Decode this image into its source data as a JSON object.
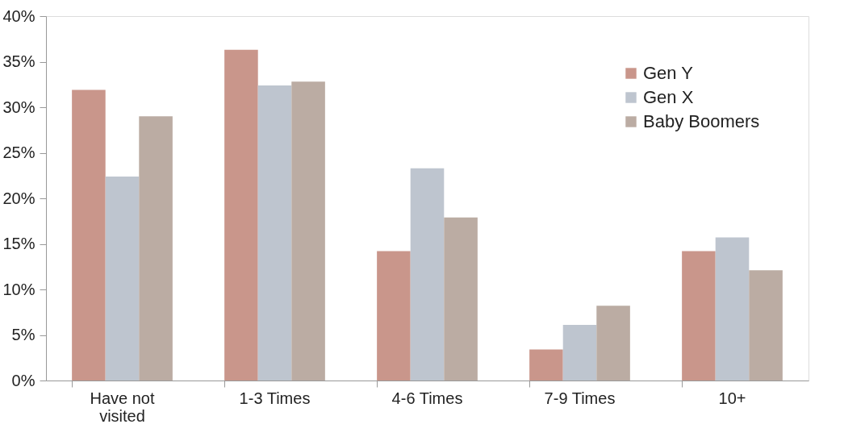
{
  "chart_data": {
    "type": "bar",
    "categories": [
      "Have not visited",
      "1-3 Times",
      "4-6 Times",
      "7-9 Times",
      "10+"
    ],
    "series": [
      {
        "name": "Gen Y",
        "color": "#c9968b",
        "values": [
          31.9,
          36.3,
          14.2,
          3.4,
          14.2
        ]
      },
      {
        "name": "Gen X",
        "color": "#bec5cf",
        "values": [
          22.4,
          32.4,
          23.3,
          6.1,
          15.7
        ]
      },
      {
        "name": "Baby Boomers",
        "color": "#bbaca3",
        "values": [
          29.0,
          32.8,
          17.9,
          8.2,
          12.1
        ]
      }
    ],
    "ylim": [
      0,
      40
    ],
    "yticks": [
      {
        "value": 0,
        "label": "0%"
      },
      {
        "value": 5,
        "label": "5%"
      },
      {
        "value": 10,
        "label": "10%"
      },
      {
        "value": 15,
        "label": "15%"
      },
      {
        "value": 20,
        "label": "20%"
      },
      {
        "value": 25,
        "label": "25%"
      },
      {
        "value": 30,
        "label": "30%"
      },
      {
        "value": 35,
        "label": "35%"
      },
      {
        "value": 40,
        "label": "40%"
      }
    ],
    "grid": false,
    "legend": "top right"
  }
}
